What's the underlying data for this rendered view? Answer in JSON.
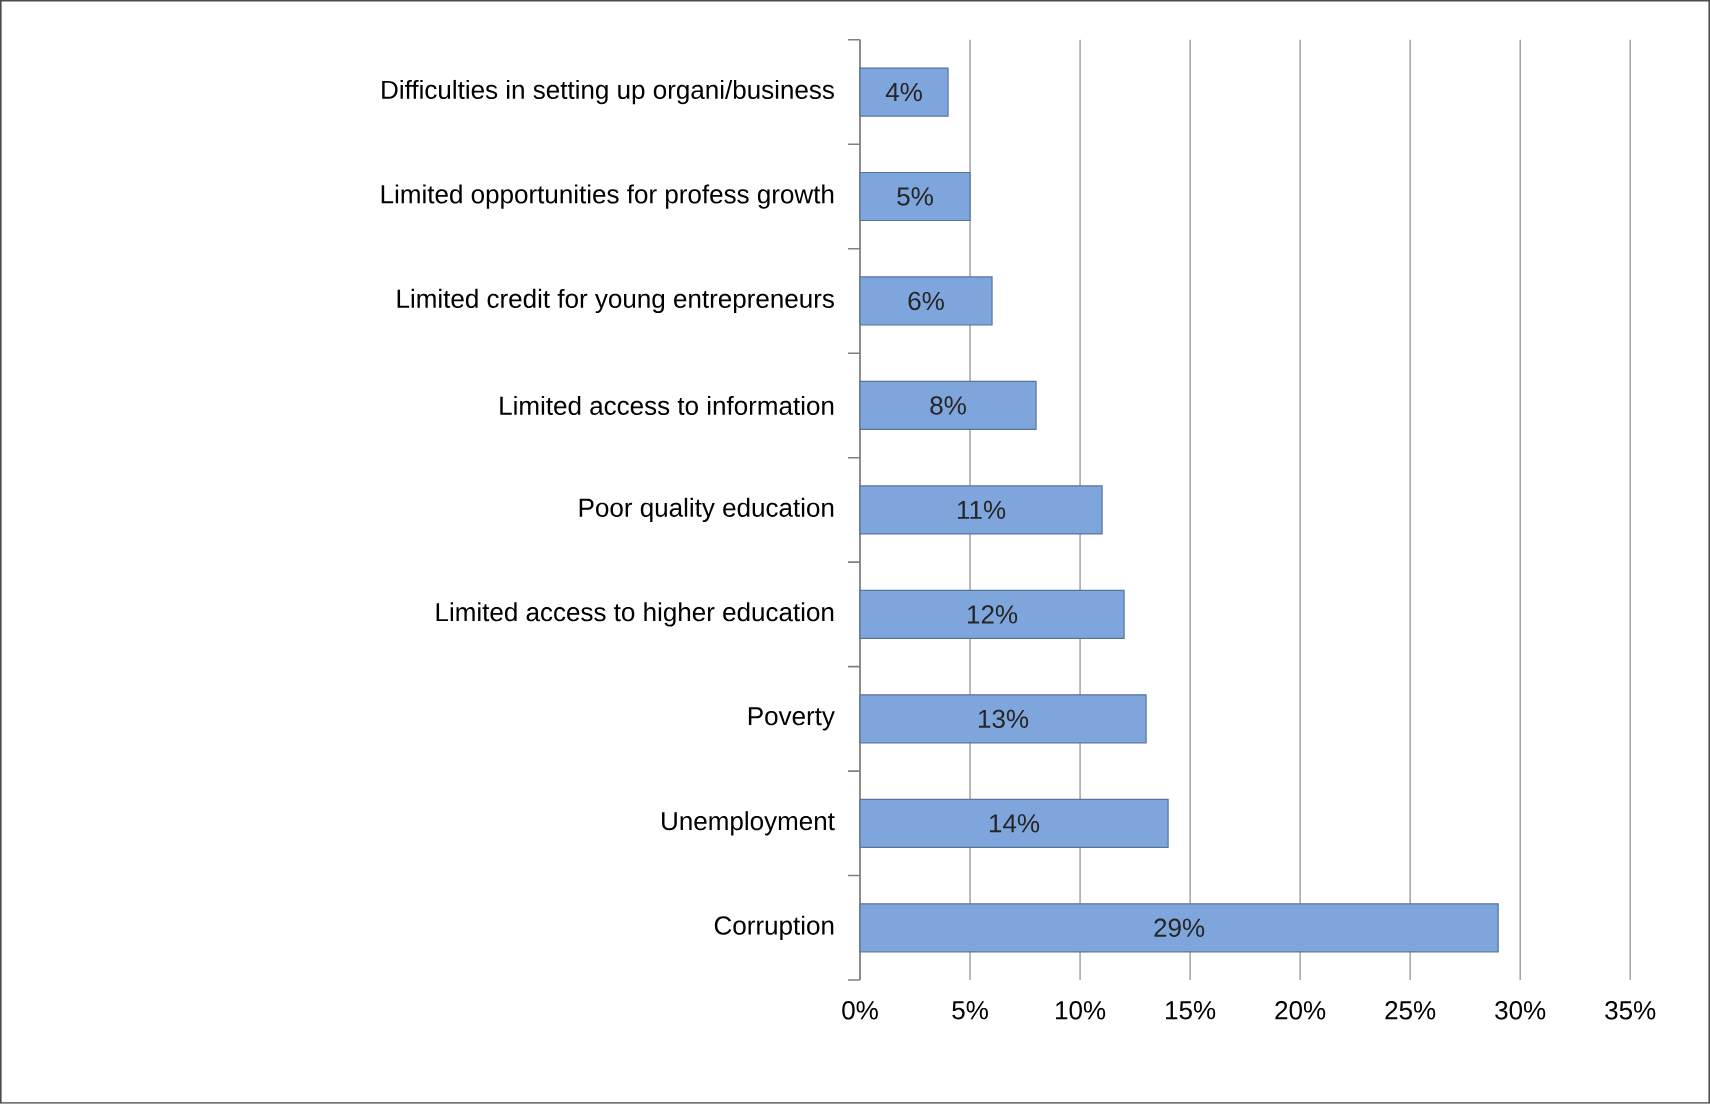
{
  "chart_data": {
    "type": "bar",
    "orientation": "horizontal",
    "categories": [
      "Difficulties in setting up organi/business",
      "Limited opportunities for profess growth",
      "Limited credit for young entrepreneurs",
      "Limited access to information",
      "Poor quality education",
      "Limited access to higher education",
      "Poverty",
      "Unemployment",
      "Corruption"
    ],
    "values": [
      4,
      5,
      6,
      8,
      11,
      12,
      13,
      14,
      29
    ],
    "value_labels": [
      "4%",
      "5%",
      "6%",
      "8%",
      "11%",
      "12%",
      "13%",
      "14%",
      "29%"
    ],
    "color": "#7fa6dc",
    "xlim": [
      0,
      35
    ],
    "xticks": [
      {
        "value": 0,
        "label": "0%"
      },
      {
        "value": 5,
        "label": "5%"
      },
      {
        "value": 10,
        "label": "10%"
      },
      {
        "value": 15,
        "label": "15%"
      },
      {
        "value": 20,
        "label": "20%"
      },
      {
        "value": 25,
        "label": "25%"
      },
      {
        "value": 30,
        "label": "30%"
      },
      {
        "value": 35,
        "label": "35%"
      }
    ],
    "grid": "x"
  }
}
